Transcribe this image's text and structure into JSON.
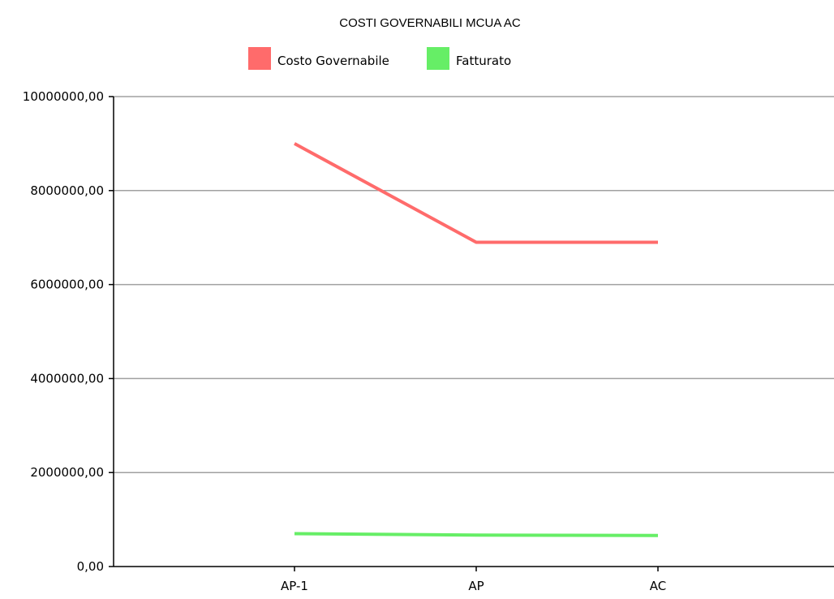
{
  "chart_data": {
    "type": "line",
    "title": "COSTI GOVERNABILI MCUA AC",
    "xlabel": "",
    "ylabel": "",
    "categories": [
      "AP-1",
      "AP",
      "AC"
    ],
    "series": [
      {
        "name": "Costo Governabile",
        "color": "#ff6b6b",
        "values": [
          9000000,
          6900000,
          6900000
        ]
      },
      {
        "name": "Fatturato",
        "color": "#66ee66",
        "values": [
          700000,
          670000,
          660000
        ]
      }
    ],
    "ylim": [
      0,
      10000000
    ],
    "y_ticks": [
      "0,00",
      "2000000,00",
      "4000000,00",
      "6000000,00",
      "8000000,00",
      "10000000,00"
    ],
    "grid": true,
    "legend_position": "top"
  }
}
